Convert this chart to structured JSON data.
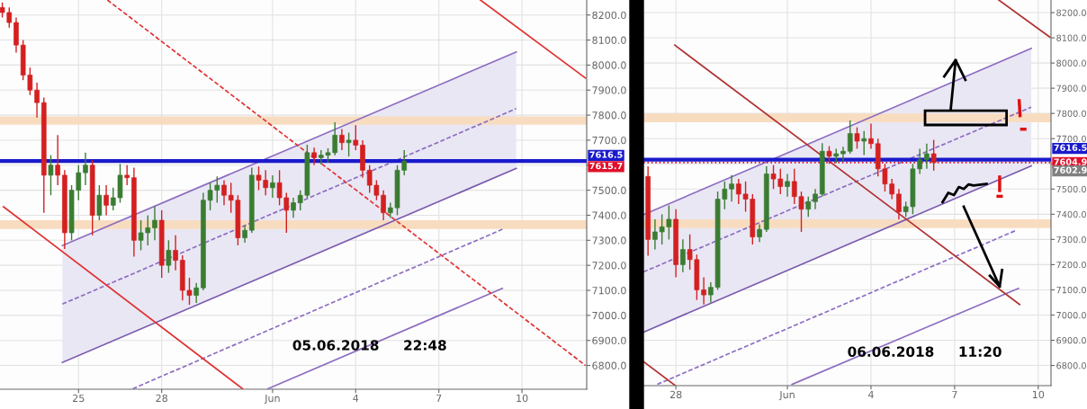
{
  "chart_data": [
    {
      "type": "candlestick",
      "x": [
        "2018-05-22T06:00",
        "2018-05-22T12:00",
        "2018-05-22T18:00",
        "2018-05-23T00:00",
        "2018-05-23T06:00",
        "2018-05-23T12:00",
        "2018-05-23T18:00",
        "2018-05-24T00:00",
        "2018-05-24T06:00",
        "2018-05-24T12:00",
        "2018-05-24T18:00",
        "2018-05-25T00:00",
        "2018-05-25T06:00",
        "2018-05-25T12:00",
        "2018-05-25T18:00",
        "2018-05-26T00:00",
        "2018-05-26T06:00",
        "2018-05-26T12:00",
        "2018-05-26T18:00",
        "2018-05-27T00:00",
        "2018-05-27T06:00",
        "2018-05-27T12:00",
        "2018-05-27T18:00",
        "2018-05-28T00:00",
        "2018-05-28T06:00",
        "2018-05-28T12:00",
        "2018-05-28T18:00",
        "2018-05-29T00:00",
        "2018-05-29T06:00",
        "2018-05-29T12:00",
        "2018-05-29T18:00",
        "2018-05-30T00:00",
        "2018-05-30T06:00",
        "2018-05-30T12:00",
        "2018-05-30T18:00",
        "2018-05-31T00:00",
        "2018-05-31T06:00",
        "2018-05-31T12:00",
        "2018-05-31T18:00",
        "2018-06-01T00:00",
        "2018-06-01T06:00",
        "2018-06-01T12:00",
        "2018-06-01T18:00",
        "2018-06-02T00:00",
        "2018-06-02T06:00",
        "2018-06-02T12:00",
        "2018-06-02T18:00",
        "2018-06-03T00:00",
        "2018-06-03T06:00",
        "2018-06-03T12:00",
        "2018-06-03T18:00",
        "2018-06-04T00:00",
        "2018-06-04T06:00",
        "2018-06-04T12:00",
        "2018-06-04T18:00",
        "2018-06-05T00:00",
        "2018-06-05T06:00",
        "2018-06-05T12:00",
        "2018-06-05T18:00"
      ],
      "ohlc": [
        [
          8230,
          8250,
          8190,
          8210
        ],
        [
          8210,
          8230,
          8150,
          8170
        ],
        [
          8170,
          8190,
          8050,
          8080
        ],
        [
          8080,
          8100,
          7940,
          7960
        ],
        [
          7960,
          7990,
          7880,
          7900
        ],
        [
          7900,
          7930,
          7790,
          7850
        ],
        [
          7850,
          7870,
          7410,
          7560
        ],
        [
          7560,
          7640,
          7480,
          7600
        ],
        [
          7600,
          7720,
          7520,
          7560
        ],
        [
          7560,
          7580,
          7265,
          7330
        ],
        [
          7330,
          7520,
          7300,
          7500
        ],
        [
          7500,
          7600,
          7460,
          7570
        ],
        [
          7570,
          7650,
          7520,
          7600
        ],
        [
          7600,
          7620,
          7320,
          7400
        ],
        [
          7400,
          7520,
          7380,
          7480
        ],
        [
          7480,
          7520,
          7400,
          7440
        ],
        [
          7440,
          7510,
          7420,
          7470
        ],
        [
          7470,
          7605,
          7450,
          7560
        ],
        [
          7560,
          7600,
          7520,
          7550
        ],
        [
          7550,
          7590,
          7235,
          7300
        ],
        [
          7300,
          7380,
          7260,
          7330
        ],
        [
          7330,
          7400,
          7280,
          7350
        ],
        [
          7350,
          7435,
          7300,
          7380
        ],
        [
          7380,
          7420,
          7150,
          7200
        ],
        [
          7200,
          7300,
          7170,
          7260
        ],
        [
          7260,
          7320,
          7180,
          7220
        ],
        [
          7220,
          7240,
          7060,
          7100
        ],
        [
          7100,
          7150,
          7042,
          7080
        ],
        [
          7080,
          7130,
          7050,
          7110
        ],
        [
          7110,
          7490,
          7100,
          7460
        ],
        [
          7460,
          7530,
          7420,
          7500
        ],
        [
          7500,
          7555,
          7450,
          7520
        ],
        [
          7520,
          7540,
          7440,
          7480
        ],
        [
          7480,
          7530,
          7410,
          7460
        ],
        [
          7460,
          7480,
          7280,
          7310
        ],
        [
          7310,
          7360,
          7290,
          7340
        ],
        [
          7340,
          7590,
          7330,
          7560
        ],
        [
          7560,
          7595,
          7500,
          7540
        ],
        [
          7540,
          7580,
          7480,
          7510
        ],
        [
          7510,
          7560,
          7470,
          7530
        ],
        [
          7530,
          7580,
          7440,
          7470
        ],
        [
          7470,
          7490,
          7330,
          7420
        ],
        [
          7420,
          7470,
          7390,
          7450
        ],
        [
          7450,
          7500,
          7420,
          7480
        ],
        [
          7480,
          7682,
          7470,
          7650
        ],
        [
          7650,
          7670,
          7600,
          7630
        ],
        [
          7630,
          7660,
          7603,
          7640
        ],
        [
          7640,
          7668,
          7610,
          7650
        ],
        [
          7650,
          7772,
          7640,
          7720
        ],
        [
          7720,
          7745,
          7660,
          7690
        ],
        [
          7690,
          7730,
          7635,
          7700
        ],
        [
          7700,
          7760,
          7660,
          7680
        ],
        [
          7680,
          7700,
          7550,
          7580
        ],
        [
          7580,
          7600,
          7490,
          7520
        ],
        [
          7520,
          7540,
          7460,
          7480
        ],
        [
          7480,
          7500,
          7380,
          7410
        ],
        [
          7410,
          7450,
          7390,
          7430
        ],
        [
          7430,
          7600,
          7400,
          7580
        ],
        [
          7580,
          7660,
          7560,
          7616
        ]
      ],
      "colors": [
        "#d42020",
        "#d42020",
        "#d42020",
        "#d42020",
        "#d42020",
        "#d42020",
        "#d42020",
        "#3a7d32",
        "#d42020",
        "#d42020",
        "#3a7d32",
        "#3a7d32",
        "#3a7d32",
        "#d42020",
        "#3a7d32",
        "#d42020",
        "#3a7d32",
        "#3a7d32",
        "#d42020",
        "#d42020",
        "#3a7d32",
        "#3a7d32",
        "#3a7d32",
        "#d42020",
        "#3a7d32",
        "#d42020",
        "#d42020",
        "#d42020",
        "#3a7d32",
        "#3a7d32",
        "#3a7d32",
        "#3a7d32",
        "#d42020",
        "#d42020",
        "#d42020",
        "#3a7d32",
        "#3a7d32",
        "#d42020",
        "#d42020",
        "#3a7d32",
        "#d42020",
        "#d42020",
        "#3a7d32",
        "#3a7d32",
        "#3a7d32",
        "#d42020",
        "#3a7d32",
        "#3a7d32",
        "#3a7d32",
        "#d42020",
        "#3a7d32",
        "#d42020",
        "#d42020",
        "#d42020",
        "#d42020",
        "#d42020",
        "#3a7d32",
        "#3a7d32",
        "#3a7d32"
      ],
      "series": [
        {
          "type": "line",
          "x": [
            "2018-05-24T10:00",
            "2018-06-09T19:00"
          ],
          "values": [
            7045,
            7826
          ],
          "lower": [
            6812,
            7587
          ],
          "upper": [
            7279,
            8052
          ],
          "color": "#8c6cc0",
          "line_style": "dashed"
        },
        {
          "type": "line",
          "x": [
            "2018-05-24T10:00",
            "2018-06-09T19:00"
          ],
          "values": [
            7279,
            8052
          ],
          "color": "#8c6cc0",
          "line_style": "solid"
        },
        {
          "type": "line",
          "x": [
            "2018-05-24T10:00",
            "2018-06-09T19:00"
          ],
          "values": [
            6812,
            7587
          ],
          "color": "#7a5aae",
          "line_style": "solid"
        },
        {
          "type": "line",
          "x": [
            "2018-05-26T23:00",
            "2018-06-09T07:00"
          ],
          "values": [
            6707,
            7344
          ],
          "color": "#8c6cc0",
          "line_style": "dashed"
        },
        {
          "type": "line",
          "x": [
            "2018-05-31T20:00",
            "2018-06-09T07:00"
          ],
          "values": [
            6707,
            7108
          ],
          "color": "#8c6cc0",
          "line_style": "solid"
        },
        {
          "type": "line",
          "x": [
            "2018-05-22T07:00",
            "2018-05-30T22:00"
          ],
          "values": [
            7434,
            6707
          ],
          "color": "#e03030",
          "line_style": "solid"
        },
        {
          "type": "line",
          "x": [
            "2018-05-26T01:00",
            "2018-06-12T07:00"
          ],
          "values": [
            8260,
            6800
          ],
          "color": "#e03030",
          "line_style": "dashed"
        },
        {
          "type": "line",
          "x": [
            "2018-06-08T12:00",
            "2018-06-12T07:00"
          ],
          "values": [
            8260,
            7948
          ],
          "color": "#e03030",
          "line_style": "solid"
        }
      ],
      "bands": [
        {
          "axis": "y",
          "from": 7762,
          "to": 7795,
          "color": "#f8dcc0"
        },
        {
          "axis": "y",
          "from": 7345,
          "to": 7380,
          "color": "#f8dcc0"
        }
      ],
      "ref_lines": [
        {
          "axis": "y",
          "value": 7616.5,
          "label": "7616.5",
          "color": "#1a1acc",
          "line_style": "solid"
        }
      ],
      "xlim": [
        "2018-05-22T04:00",
        "2018-06-12T08:00"
      ],
      "xticks": [
        {
          "value": "2018-05-25",
          "label": "25"
        },
        {
          "value": "2018-05-28",
          "label": "28"
        },
        {
          "value": "2018-06-01",
          "label": "Jun"
        },
        {
          "value": "2018-06-04",
          "label": "4"
        },
        {
          "value": "2018-06-07",
          "label": "7"
        },
        {
          "value": "2018-06-10",
          "label": "10"
        }
      ],
      "ylim": [
        6705,
        8260
      ],
      "yticks": [
        {
          "value": 6800,
          "label": "6800.0"
        },
        {
          "value": 6900,
          "label": "6900.0"
        },
        {
          "value": 7000,
          "label": "7000.0"
        },
        {
          "value": 7100,
          "label": "7100.0"
        },
        {
          "value": 7200,
          "label": "7200.0"
        },
        {
          "value": 7300,
          "label": "7300.0"
        },
        {
          "value": 7400,
          "label": "7400.0"
        },
        {
          "value": 7500,
          "label": "7500.0"
        },
        {
          "value": 7600,
          "label": null
        },
        {
          "value": 7700,
          "label": "7700.0"
        },
        {
          "value": 7800,
          "label": "7800.0"
        },
        {
          "value": 7900,
          "label": "7900.0"
        },
        {
          "value": 8000,
          "label": "8000.0"
        },
        {
          "value": 8100,
          "label": "8100.0"
        },
        {
          "value": 8200,
          "label": "8200.0"
        }
      ],
      "grid": true,
      "legend": false,
      "annotations": [
        "05.06.2018     22:48",
        "7615.7"
      ]
    },
    {
      "type": "candlestick",
      "x": [
        "2018-05-27T00:00",
        "2018-05-27T06:00",
        "2018-05-27T12:00",
        "2018-05-27T18:00",
        "2018-05-28T00:00",
        "2018-05-28T06:00",
        "2018-05-28T12:00",
        "2018-05-28T18:00",
        "2018-05-29T00:00",
        "2018-05-29T06:00",
        "2018-05-29T12:00",
        "2018-05-29T18:00",
        "2018-05-30T00:00",
        "2018-05-30T06:00",
        "2018-05-30T12:00",
        "2018-05-30T18:00",
        "2018-05-31T00:00",
        "2018-05-31T06:00",
        "2018-05-31T12:00",
        "2018-05-31T18:00",
        "2018-06-01T00:00",
        "2018-06-01T06:00",
        "2018-06-01T12:00",
        "2018-06-01T18:00",
        "2018-06-02T00:00",
        "2018-06-02T06:00",
        "2018-06-02T12:00",
        "2018-06-02T18:00",
        "2018-06-03T00:00",
        "2018-06-03T06:00",
        "2018-06-03T12:00",
        "2018-06-03T18:00",
        "2018-06-04T00:00",
        "2018-06-04T06:00",
        "2018-06-04T12:00",
        "2018-06-04T18:00",
        "2018-06-05T00:00",
        "2018-06-05T06:00",
        "2018-06-05T12:00",
        "2018-06-05T18:00",
        "2018-06-06T00:00",
        "2018-06-06T06:00"
      ],
      "ohlc": [
        [
          7550,
          7590,
          7235,
          7300
        ],
        [
          7300,
          7380,
          7260,
          7330
        ],
        [
          7330,
          7400,
          7280,
          7350
        ],
        [
          7350,
          7435,
          7300,
          7380
        ],
        [
          7380,
          7420,
          7150,
          7200
        ],
        [
          7200,
          7300,
          7170,
          7260
        ],
        [
          7260,
          7320,
          7180,
          7220
        ],
        [
          7220,
          7240,
          7060,
          7100
        ],
        [
          7100,
          7150,
          7042,
          7080
        ],
        [
          7080,
          7130,
          7050,
          7110
        ],
        [
          7110,
          7490,
          7100,
          7460
        ],
        [
          7460,
          7530,
          7420,
          7500
        ],
        [
          7500,
          7555,
          7450,
          7520
        ],
        [
          7520,
          7540,
          7440,
          7480
        ],
        [
          7480,
          7530,
          7410,
          7460
        ],
        [
          7460,
          7480,
          7280,
          7310
        ],
        [
          7310,
          7360,
          7290,
          7340
        ],
        [
          7340,
          7590,
          7330,
          7560
        ],
        [
          7560,
          7595,
          7500,
          7540
        ],
        [
          7540,
          7580,
          7480,
          7510
        ],
        [
          7510,
          7560,
          7470,
          7530
        ],
        [
          7530,
          7580,
          7440,
          7470
        ],
        [
          7470,
          7490,
          7330,
          7420
        ],
        [
          7420,
          7470,
          7390,
          7450
        ],
        [
          7450,
          7500,
          7420,
          7480
        ],
        [
          7480,
          7682,
          7470,
          7650
        ],
        [
          7650,
          7670,
          7600,
          7630
        ],
        [
          7630,
          7660,
          7603,
          7640
        ],
        [
          7640,
          7668,
          7610,
          7650
        ],
        [
          7650,
          7772,
          7640,
          7720
        ],
        [
          7720,
          7745,
          7660,
          7690
        ],
        [
          7690,
          7730,
          7635,
          7700
        ],
        [
          7700,
          7760,
          7660,
          7680
        ],
        [
          7680,
          7700,
          7550,
          7580
        ],
        [
          7580,
          7600,
          7490,
          7520
        ],
        [
          7520,
          7540,
          7460,
          7480
        ],
        [
          7480,
          7500,
          7380,
          7410
        ],
        [
          7410,
          7450,
          7390,
          7430
        ],
        [
          7430,
          7600,
          7400,
          7580
        ],
        [
          7580,
          7660,
          7560,
          7616
        ],
        [
          7616,
          7680,
          7580,
          7640
        ],
        [
          7640,
          7695,
          7573,
          7605
        ]
      ],
      "colors": [
        "#d42020",
        "#3a7d32",
        "#3a7d32",
        "#3a7d32",
        "#d42020",
        "#3a7d32",
        "#d42020",
        "#d42020",
        "#d42020",
        "#3a7d32",
        "#3a7d32",
        "#3a7d32",
        "#3a7d32",
        "#d42020",
        "#d42020",
        "#d42020",
        "#3a7d32",
        "#3a7d32",
        "#d42020",
        "#d42020",
        "#3a7d32",
        "#d42020",
        "#d42020",
        "#3a7d32",
        "#3a7d32",
        "#3a7d32",
        "#d42020",
        "#3a7d32",
        "#3a7d32",
        "#3a7d32",
        "#d42020",
        "#3a7d32",
        "#d42020",
        "#d42020",
        "#d42020",
        "#d42020",
        "#d42020",
        "#3a7d32",
        "#3a7d32",
        "#3a7d32",
        "#3a7d32",
        "#d42020"
      ],
      "series": [
        {
          "type": "line",
          "x": [
            "2018-05-26T20:00",
            "2018-06-09T18:00"
          ],
          "values": [
            7171,
            7825
          ],
          "lower": [
            6932,
            7592
          ],
          "upper": [
            7398,
            8058
          ],
          "color": "#8c6cc0",
          "line_style": "dashed"
        },
        {
          "type": "line",
          "x": [
            "2018-05-26T20:00",
            "2018-06-09T18:00"
          ],
          "values": [
            7398,
            8058
          ],
          "color": "#8c6cc0",
          "line_style": "solid"
        },
        {
          "type": "line",
          "x": [
            "2018-05-26T20:00",
            "2018-06-09T18:00"
          ],
          "values": [
            6932,
            7592
          ],
          "color": "#7a5aae",
          "line_style": "solid"
        },
        {
          "type": "line",
          "x": [
            "2018-05-27T08:00",
            "2018-06-09T04:00"
          ],
          "values": [
            6725,
            7334
          ],
          "color": "#8c6cc0",
          "line_style": "dashed"
        },
        {
          "type": "line",
          "x": [
            "2018-06-01T04:00",
            "2018-06-09T07:00"
          ],
          "values": [
            6725,
            7106
          ],
          "color": "#8c6cc0",
          "line_style": "solid"
        },
        {
          "type": "line",
          "x": [
            "2018-05-27T23:00",
            "2018-06-09T08:00"
          ],
          "values": [
            8071,
            7042
          ],
          "color": "#b03030",
          "line_style": "solid"
        },
        {
          "type": "line",
          "x": [
            "2018-06-08T14:00",
            "2018-06-10T10:00"
          ],
          "values": [
            8250,
            8103
          ],
          "color": "#b03030",
          "line_style": "solid"
        },
        {
          "type": "line",
          "x": [
            "2018-05-26T20:00",
            "2018-05-27T23:00"
          ],
          "values": [
            6816,
            6722
          ],
          "color": "#b03030",
          "line_style": "solid"
        }
      ],
      "bands": [
        {
          "axis": "y",
          "from": 7765,
          "to": 7800,
          "color": "#f8dcc0"
        },
        {
          "axis": "y",
          "from": 7345,
          "to": 7380,
          "color": "#f8dcc0"
        }
      ],
      "ref_lines": [
        {
          "axis": "y",
          "value": 7616.5,
          "label": "7616.5",
          "color": "#1a1acc",
          "line_style": "solid"
        },
        {
          "axis": "y",
          "value": 7604.9,
          "label": "7604.9",
          "color": "#e0102a",
          "line_style": "dotted"
        }
      ],
      "xlim": [
        "2018-05-26T20:00",
        "2018-06-10T11:00"
      ],
      "xticks": [
        {
          "value": "2018-05-28",
          "label": "28"
        },
        {
          "value": "2018-06-01",
          "label": "Jun"
        },
        {
          "value": "2018-06-04",
          "label": "4"
        },
        {
          "value": "2018-06-07",
          "label": "7"
        },
        {
          "value": "2018-06-10",
          "label": "10"
        }
      ],
      "ylim": [
        6720,
        8250
      ],
      "yticks": [
        {
          "value": 6800,
          "label": "6800.0"
        },
        {
          "value": 6900,
          "label": "6900.0"
        },
        {
          "value": 7000,
          "label": "7000.0"
        },
        {
          "value": 7100,
          "label": "7100.0"
        },
        {
          "value": 7200,
          "label": "7200.0"
        },
        {
          "value": 7300,
          "label": "7300.0"
        },
        {
          "value": 7400,
          "label": "7400.0"
        },
        {
          "value": 7500,
          "label": "7500.0"
        },
        {
          "value": 7600,
          "label": null
        },
        {
          "value": 7700,
          "label": "7700.0"
        },
        {
          "value": 7800,
          "label": "7800.0"
        },
        {
          "value": 7900,
          "label": "7900.0"
        },
        {
          "value": 8000,
          "label": "8000.0"
        },
        {
          "value": 8100,
          "label": "8100.0"
        },
        {
          "value": 8200,
          "label": "8200.0"
        }
      ],
      "grid": true,
      "legend": false,
      "annotations": [
        "06.06.2018     11:20",
        "7602.9"
      ]
    }
  ]
}
